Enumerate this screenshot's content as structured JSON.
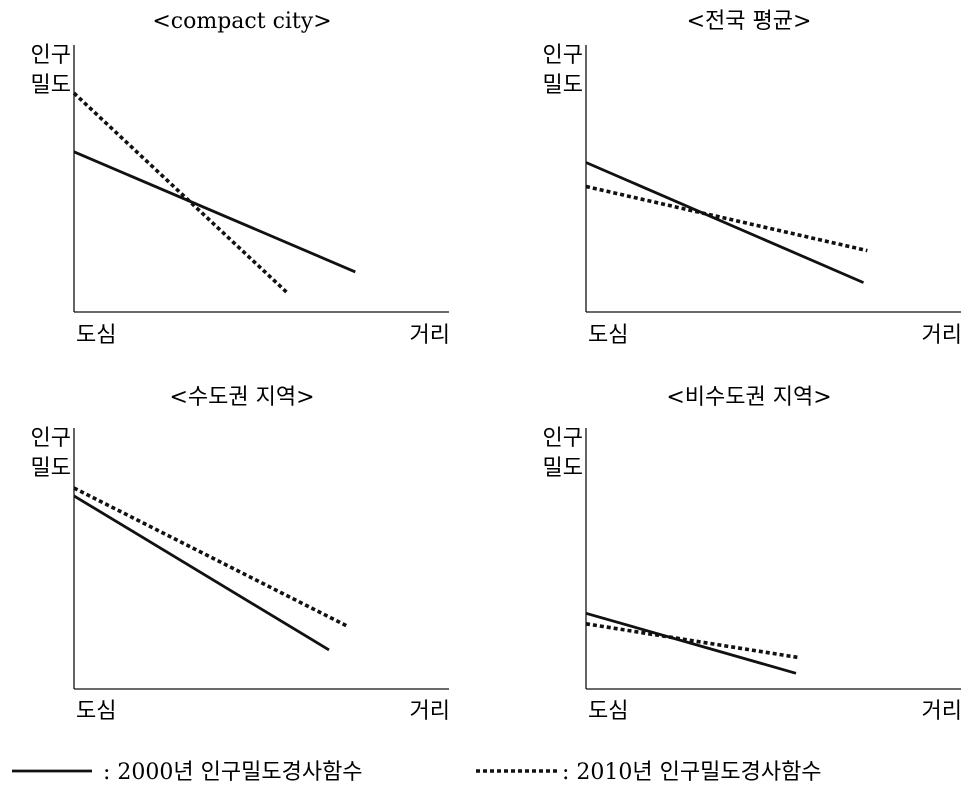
{
  "chart_data": [
    {
      "type": "line",
      "title": "<compact city>",
      "ylabel": [
        "인구",
        "밀도"
      ],
      "x_start_label": "도심",
      "x_end_label": "거리",
      "xlim": [
        0,
        1
      ],
      "ylim": [
        0,
        1
      ],
      "series": [
        {
          "key": "2000",
          "style": "solid",
          "x": [
            0,
            0.75
          ],
          "y": [
            0.6,
            0.15
          ]
        },
        {
          "key": "2010",
          "style": "dotted",
          "x": [
            0,
            0.57
          ],
          "y": [
            0.82,
            0.07
          ]
        }
      ]
    },
    {
      "type": "line",
      "title": "<전국 평균>",
      "ylabel": [
        "인구",
        "밀도"
      ],
      "x_start_label": "도심",
      "x_end_label": "거리",
      "xlim": [
        0,
        1
      ],
      "ylim": [
        0,
        1
      ],
      "series": [
        {
          "key": "2000",
          "style": "solid",
          "x": [
            0,
            0.74
          ],
          "y": [
            0.56,
            0.11
          ]
        },
        {
          "key": "2010",
          "style": "dotted",
          "x": [
            0,
            0.75
          ],
          "y": [
            0.47,
            0.23
          ]
        }
      ]
    },
    {
      "type": "line",
      "title": "<수도권 지역>",
      "ylabel": [
        "인구",
        "밀도"
      ],
      "x_start_label": "도심",
      "x_end_label": "거리",
      "xlim": [
        0,
        1
      ],
      "ylim": [
        0,
        1
      ],
      "series": [
        {
          "key": "2000",
          "style": "solid",
          "x": [
            0,
            0.68
          ],
          "y": [
            0.74,
            0.15
          ]
        },
        {
          "key": "2010",
          "style": "dotted",
          "x": [
            0,
            0.73
          ],
          "y": [
            0.77,
            0.24
          ]
        }
      ]
    },
    {
      "type": "line",
      "title": "<비수도권 지역>",
      "ylabel": [
        "인구",
        "밀도"
      ],
      "x_start_label": "도심",
      "x_end_label": "거리",
      "xlim": [
        0,
        1
      ],
      "ylim": [
        0,
        1
      ],
      "series": [
        {
          "key": "2000",
          "style": "solid",
          "x": [
            0,
            0.56
          ],
          "y": [
            0.29,
            0.06
          ]
        },
        {
          "key": "2010",
          "style": "dotted",
          "x": [
            0,
            0.57
          ],
          "y": [
            0.25,
            0.12
          ]
        }
      ]
    }
  ],
  "legend": {
    "items": [
      {
        "key": "2000",
        "style": "solid",
        "label": ": 2000년 인구밀도경사함수"
      },
      {
        "key": "2010",
        "style": "dotted",
        "label": ": 2010년 인구밀도경사함수"
      }
    ]
  },
  "colors": {
    "line": "#111111",
    "background": "#ffffff"
  }
}
